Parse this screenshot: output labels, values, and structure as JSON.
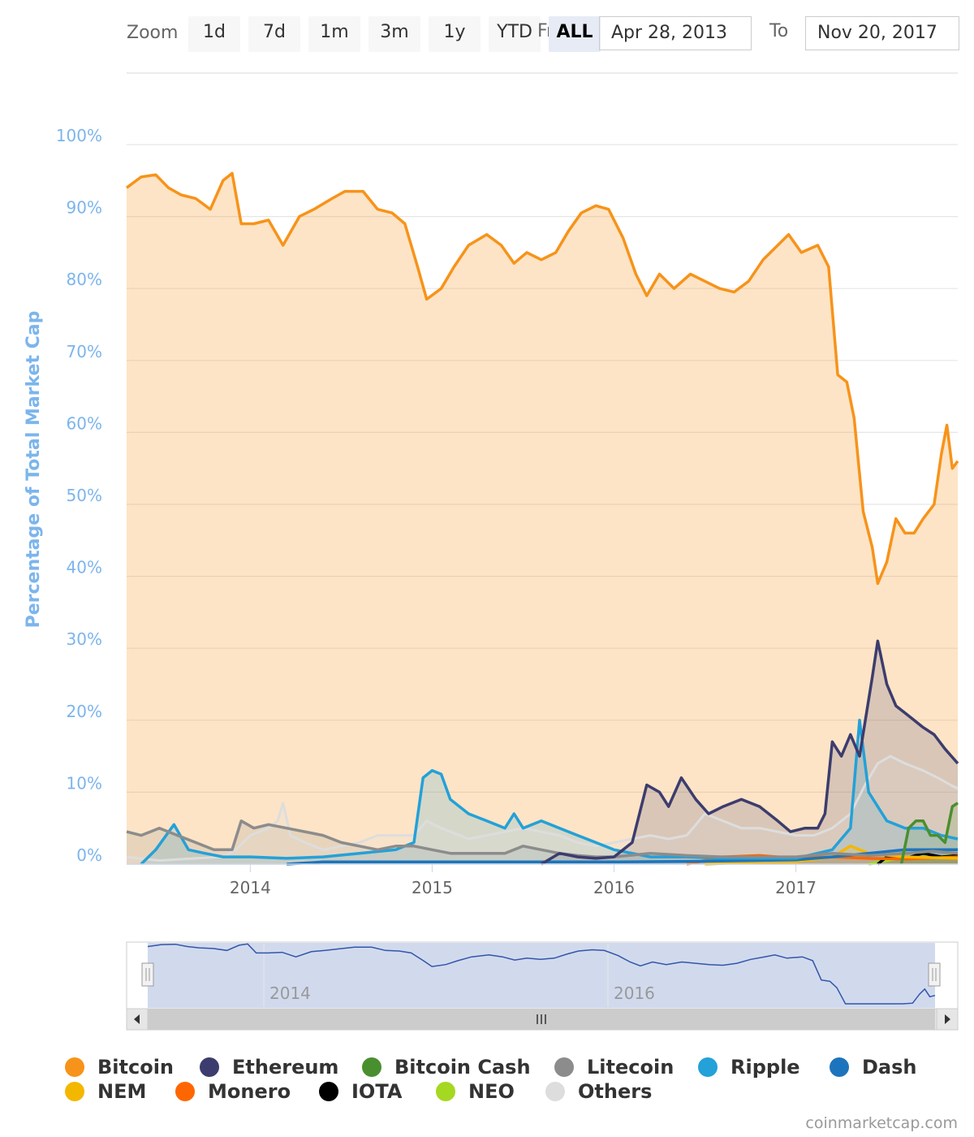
{
  "toolbar": {
    "zoom_label": "Zoom",
    "buttons": [
      "1d",
      "7d",
      "1m",
      "3m",
      "1y",
      "YTD",
      "ALL"
    ],
    "active_button": "ALL",
    "from_label": "From",
    "from_value": "Apr 28, 2013",
    "to_label": "To",
    "to_value": "Nov 20, 2017"
  },
  "credit": "coinmarketcap.com",
  "navigator": {
    "year_labels": [
      "2014",
      "2016"
    ]
  },
  "chart_data": {
    "type": "area",
    "title": "",
    "ylabel": "Percentage of Total Market Cap",
    "xlabel": "",
    "x_tick_labels": [
      "2014",
      "2015",
      "2016",
      "2017"
    ],
    "y_tick_labels": [
      "0%",
      "10%",
      "20%",
      "30%",
      "40%",
      "50%",
      "60%",
      "70%",
      "80%",
      "90%",
      "100%"
    ],
    "ylim": [
      0,
      100
    ],
    "xlim": [
      "2013-04-28",
      "2017-11-20"
    ],
    "grid": true,
    "legend_position": "bottom",
    "x_unit": "year",
    "series": [
      {
        "name": "Bitcoin",
        "color": "#f7931a",
        "points": [
          [
            2013.32,
            94
          ],
          [
            2013.4,
            95.5
          ],
          [
            2013.48,
            95.8
          ],
          [
            2013.55,
            94
          ],
          [
            2013.62,
            93
          ],
          [
            2013.7,
            92.5
          ],
          [
            2013.78,
            91
          ],
          [
            2013.85,
            95
          ],
          [
            2013.9,
            96
          ],
          [
            2013.95,
            89
          ],
          [
            2014.02,
            89
          ],
          [
            2014.1,
            89.5
          ],
          [
            2014.18,
            86
          ],
          [
            2014.27,
            90
          ],
          [
            2014.35,
            91
          ],
          [
            2014.45,
            92.5
          ],
          [
            2014.52,
            93.5
          ],
          [
            2014.62,
            93.5
          ],
          [
            2014.7,
            91
          ],
          [
            2014.78,
            90.5
          ],
          [
            2014.85,
            89
          ],
          [
            2014.92,
            83
          ],
          [
            2014.97,
            78.5
          ],
          [
            2015.05,
            80
          ],
          [
            2015.12,
            83
          ],
          [
            2015.2,
            86
          ],
          [
            2015.3,
            87.5
          ],
          [
            2015.38,
            86
          ],
          [
            2015.45,
            83.5
          ],
          [
            2015.52,
            85
          ],
          [
            2015.6,
            84
          ],
          [
            2015.68,
            85
          ],
          [
            2015.75,
            88
          ],
          [
            2015.82,
            90.5
          ],
          [
            2015.9,
            91.5
          ],
          [
            2015.97,
            91
          ],
          [
            2016.05,
            87
          ],
          [
            2016.12,
            82
          ],
          [
            2016.18,
            79
          ],
          [
            2016.25,
            82
          ],
          [
            2016.33,
            80
          ],
          [
            2016.42,
            82
          ],
          [
            2016.5,
            81
          ],
          [
            2016.58,
            80
          ],
          [
            2016.66,
            79.5
          ],
          [
            2016.74,
            81
          ],
          [
            2016.82,
            84
          ],
          [
            2016.9,
            86
          ],
          [
            2016.96,
            87.5
          ],
          [
            2017.03,
            85
          ],
          [
            2017.12,
            86
          ],
          [
            2017.18,
            83
          ],
          [
            2017.23,
            68
          ],
          [
            2017.28,
            67
          ],
          [
            2017.32,
            62
          ],
          [
            2017.37,
            49
          ],
          [
            2017.42,
            44
          ],
          [
            2017.45,
            39
          ],
          [
            2017.5,
            42
          ],
          [
            2017.55,
            48
          ],
          [
            2017.6,
            46
          ],
          [
            2017.65,
            46
          ],
          [
            2017.7,
            48
          ],
          [
            2017.76,
            50
          ],
          [
            2017.8,
            57
          ],
          [
            2017.83,
            61
          ],
          [
            2017.86,
            55
          ],
          [
            2017.89,
            56
          ]
        ]
      },
      {
        "name": "Ethereum",
        "color": "#3c3c6e",
        "points": [
          [
            2015.6,
            0
          ],
          [
            2015.7,
            1.5
          ],
          [
            2015.8,
            1
          ],
          [
            2015.9,
            0.8
          ],
          [
            2016.0,
            1
          ],
          [
            2016.1,
            3
          ],
          [
            2016.18,
            11
          ],
          [
            2016.25,
            10
          ],
          [
            2016.3,
            8
          ],
          [
            2016.37,
            12
          ],
          [
            2016.45,
            9
          ],
          [
            2016.52,
            7
          ],
          [
            2016.6,
            8
          ],
          [
            2016.7,
            9
          ],
          [
            2016.8,
            8
          ],
          [
            2016.9,
            6
          ],
          [
            2016.97,
            4.5
          ],
          [
            2017.05,
            5
          ],
          [
            2017.12,
            5
          ],
          [
            2017.16,
            7
          ],
          [
            2017.2,
            17
          ],
          [
            2017.25,
            15
          ],
          [
            2017.3,
            18
          ],
          [
            2017.35,
            15
          ],
          [
            2017.42,
            26
          ],
          [
            2017.45,
            31
          ],
          [
            2017.5,
            25
          ],
          [
            2017.55,
            22
          ],
          [
            2017.6,
            21
          ],
          [
            2017.65,
            20
          ],
          [
            2017.7,
            19
          ],
          [
            2017.76,
            18
          ],
          [
            2017.82,
            16
          ],
          [
            2017.89,
            14
          ]
        ]
      },
      {
        "name": "Bitcoin Cash",
        "color": "#4a8f2f",
        "points": [
          [
            2017.58,
            0
          ],
          [
            2017.62,
            5
          ],
          [
            2017.66,
            6
          ],
          [
            2017.7,
            6
          ],
          [
            2017.74,
            4
          ],
          [
            2017.78,
            4
          ],
          [
            2017.82,
            3
          ],
          [
            2017.86,
            8
          ],
          [
            2017.89,
            8.5
          ]
        ]
      },
      {
        "name": "Litecoin",
        "color": "#8c8c8c",
        "points": [
          [
            2013.32,
            4.5
          ],
          [
            2013.4,
            4
          ],
          [
            2013.5,
            5
          ],
          [
            2013.6,
            4
          ],
          [
            2013.7,
            3
          ],
          [
            2013.8,
            2
          ],
          [
            2013.9,
            2
          ],
          [
            2013.95,
            6
          ],
          [
            2014.02,
            5
          ],
          [
            2014.1,
            5.5
          ],
          [
            2014.2,
            5
          ],
          [
            2014.3,
            4.5
          ],
          [
            2014.4,
            4
          ],
          [
            2014.5,
            3
          ],
          [
            2014.6,
            2.5
          ],
          [
            2014.7,
            2
          ],
          [
            2014.8,
            2.5
          ],
          [
            2014.9,
            2.5
          ],
          [
            2015.0,
            2
          ],
          [
            2015.1,
            1.5
          ],
          [
            2015.2,
            1.5
          ],
          [
            2015.3,
            1.5
          ],
          [
            2015.4,
            1.5
          ],
          [
            2015.5,
            2.5
          ],
          [
            2015.6,
            2
          ],
          [
            2015.7,
            1.5
          ],
          [
            2015.8,
            1.2
          ],
          [
            2015.9,
            1
          ],
          [
            2016.0,
            1
          ],
          [
            2016.2,
            1.5
          ],
          [
            2016.4,
            1.2
          ],
          [
            2016.6,
            1
          ],
          [
            2016.8,
            1
          ],
          [
            2017.0,
            1
          ],
          [
            2017.2,
            1.5
          ],
          [
            2017.4,
            1.2
          ],
          [
            2017.6,
            1.5
          ],
          [
            2017.75,
            1.8
          ],
          [
            2017.89,
            1.5
          ]
        ]
      },
      {
        "name": "Ripple",
        "color": "#23a1d8",
        "points": [
          [
            2013.4,
            0
          ],
          [
            2013.48,
            2
          ],
          [
            2013.58,
            5.5
          ],
          [
            2013.66,
            2
          ],
          [
            2013.75,
            1.5
          ],
          [
            2013.85,
            1
          ],
          [
            2014.0,
            1
          ],
          [
            2014.2,
            0.8
          ],
          [
            2014.4,
            1
          ],
          [
            2014.6,
            1.5
          ],
          [
            2014.8,
            2
          ],
          [
            2014.9,
            3
          ],
          [
            2014.95,
            12
          ],
          [
            2015.0,
            13
          ],
          [
            2015.05,
            12.5
          ],
          [
            2015.1,
            9
          ],
          [
            2015.2,
            7
          ],
          [
            2015.3,
            6
          ],
          [
            2015.4,
            5
          ],
          [
            2015.45,
            7
          ],
          [
            2015.5,
            5
          ],
          [
            2015.6,
            6
          ],
          [
            2015.7,
            5
          ],
          [
            2015.8,
            4
          ],
          [
            2015.9,
            3
          ],
          [
            2016.0,
            2
          ],
          [
            2016.2,
            1
          ],
          [
            2016.4,
            1
          ],
          [
            2016.6,
            0.8
          ],
          [
            2016.8,
            0.8
          ],
          [
            2017.0,
            0.8
          ],
          [
            2017.2,
            2
          ],
          [
            2017.3,
            5
          ],
          [
            2017.35,
            20
          ],
          [
            2017.4,
            10
          ],
          [
            2017.5,
            6
          ],
          [
            2017.6,
            5
          ],
          [
            2017.7,
            5
          ],
          [
            2017.8,
            4
          ],
          [
            2017.89,
            3.5
          ]
        ]
      },
      {
        "name": "Dash",
        "color": "#1c75bc",
        "points": [
          [
            2014.2,
            0
          ],
          [
            2014.4,
            0.3
          ],
          [
            2015.0,
            0.3
          ],
          [
            2016.0,
            0.3
          ],
          [
            2016.5,
            0.4
          ],
          [
            2017.0,
            0.6
          ],
          [
            2017.2,
            1
          ],
          [
            2017.4,
            1.5
          ],
          [
            2017.6,
            2
          ],
          [
            2017.89,
            2
          ]
        ]
      },
      {
        "name": "NEM",
        "color": "#f4b700",
        "points": [
          [
            2016.5,
            0
          ],
          [
            2016.8,
            0.3
          ],
          [
            2017.0,
            0.3
          ],
          [
            2017.2,
            1
          ],
          [
            2017.3,
            2.5
          ],
          [
            2017.4,
            1.5
          ],
          [
            2017.6,
            1
          ],
          [
            2017.89,
            0.8
          ]
        ]
      },
      {
        "name": "Monero",
        "color": "#ff6600",
        "points": [
          [
            2016.4,
            0
          ],
          [
            2016.6,
            1
          ],
          [
            2016.8,
            1.2
          ],
          [
            2017.0,
            0.8
          ],
          [
            2017.2,
            1
          ],
          [
            2017.4,
            0.8
          ],
          [
            2017.6,
            0.7
          ],
          [
            2017.89,
            1
          ]
        ]
      },
      {
        "name": "IOTA",
        "color": "#000000",
        "points": [
          [
            2017.45,
            0
          ],
          [
            2017.5,
            1
          ],
          [
            2017.6,
            0.8
          ],
          [
            2017.7,
            1.5
          ],
          [
            2017.8,
            1
          ],
          [
            2017.89,
            1.2
          ]
        ]
      },
      {
        "name": "NEO",
        "color": "#a5d821",
        "points": [
          [
            2017.4,
            0
          ],
          [
            2017.5,
            0.5
          ],
          [
            2017.6,
            1
          ],
          [
            2017.7,
            1
          ],
          [
            2017.8,
            1
          ],
          [
            2017.89,
            1.5
          ]
        ]
      },
      {
        "name": "Others",
        "color": "#dddddd",
        "points": [
          [
            2013.32,
            1
          ],
          [
            2013.5,
            0.5
          ],
          [
            2013.7,
            0.8
          ],
          [
            2013.85,
            1
          ],
          [
            2013.92,
            2
          ],
          [
            2014.0,
            4
          ],
          [
            2014.1,
            5
          ],
          [
            2014.15,
            6
          ],
          [
            2014.18,
            8.5
          ],
          [
            2014.22,
            4
          ],
          [
            2014.3,
            3
          ],
          [
            2014.4,
            2
          ],
          [
            2014.5,
            2.5
          ],
          [
            2014.6,
            3
          ],
          [
            2014.7,
            4
          ],
          [
            2014.8,
            4
          ],
          [
            2014.9,
            4
          ],
          [
            2014.97,
            6
          ],
          [
            2015.05,
            5
          ],
          [
            2015.2,
            3.5
          ],
          [
            2015.3,
            4
          ],
          [
            2015.4,
            4.5
          ],
          [
            2015.5,
            5
          ],
          [
            2015.6,
            4.5
          ],
          [
            2015.7,
            4
          ],
          [
            2015.8,
            3
          ],
          [
            2015.9,
            2.5
          ],
          [
            2016.0,
            3
          ],
          [
            2016.1,
            3.5
          ],
          [
            2016.2,
            4
          ],
          [
            2016.3,
            3.5
          ],
          [
            2016.4,
            4
          ],
          [
            2016.5,
            7
          ],
          [
            2016.6,
            6
          ],
          [
            2016.7,
            5
          ],
          [
            2016.8,
            5
          ],
          [
            2016.9,
            4.5
          ],
          [
            2017.0,
            4
          ],
          [
            2017.1,
            4
          ],
          [
            2017.2,
            5
          ],
          [
            2017.3,
            7
          ],
          [
            2017.38,
            11
          ],
          [
            2017.45,
            14
          ],
          [
            2017.52,
            15
          ],
          [
            2017.6,
            14
          ],
          [
            2017.7,
            13
          ],
          [
            2017.78,
            12
          ],
          [
            2017.85,
            11
          ],
          [
            2017.89,
            10.5
          ]
        ]
      }
    ]
  }
}
